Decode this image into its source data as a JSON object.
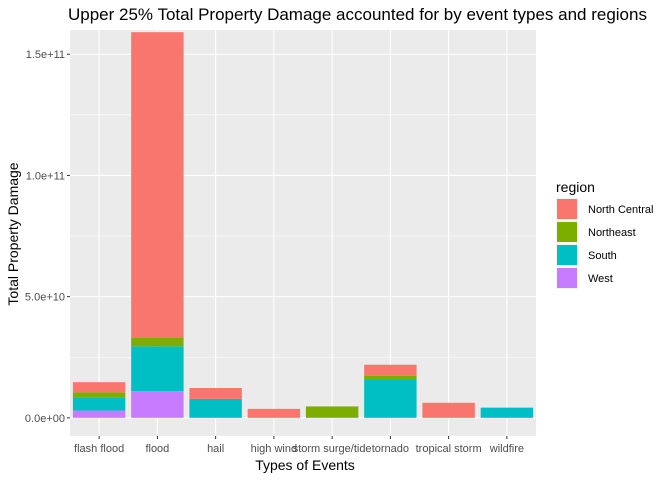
{
  "chart_data": {
    "type": "bar",
    "stacked": true,
    "title": "Upper 25% Total Property Damage accounted for by event types and regions",
    "xlabel": "Types of Events",
    "ylabel": "Total Property Damage",
    "ylim": [
      -7500000000,
      160000000000
    ],
    "yticks": [
      0,
      50000000000,
      100000000000,
      150000000000
    ],
    "ytick_labels": [
      "0.0e+00",
      "5.0e+10",
      "1.0e+11",
      "1.5e+11"
    ],
    "categories": [
      "flash flood",
      "flood",
      "hail",
      "high wind",
      "storm surge/tide",
      "tornado",
      "tropical storm",
      "wildfire"
    ],
    "series": [
      {
        "name": "North Central",
        "color": "#F8766D",
        "values": [
          4200000000,
          126000000000,
          4500000000,
          3700000000,
          0,
          4500000000,
          6200000000,
          0
        ]
      },
      {
        "name": "Northeast",
        "color": "#7CAE00",
        "values": [
          2000000000,
          3600000000,
          0,
          0,
          4700000000,
          1400000000,
          0,
          0
        ]
      },
      {
        "name": "South",
        "color": "#00BFC4",
        "values": [
          5500000000,
          18500000000,
          7800000000,
          0,
          0,
          16000000000,
          0,
          4200000000
        ]
      },
      {
        "name": "West",
        "color": "#C77CFF",
        "values": [
          3000000000,
          11000000000,
          0,
          0,
          0,
          0,
          0,
          0
        ]
      }
    ],
    "legend": {
      "title": "region",
      "position": "right"
    },
    "grid": true
  }
}
